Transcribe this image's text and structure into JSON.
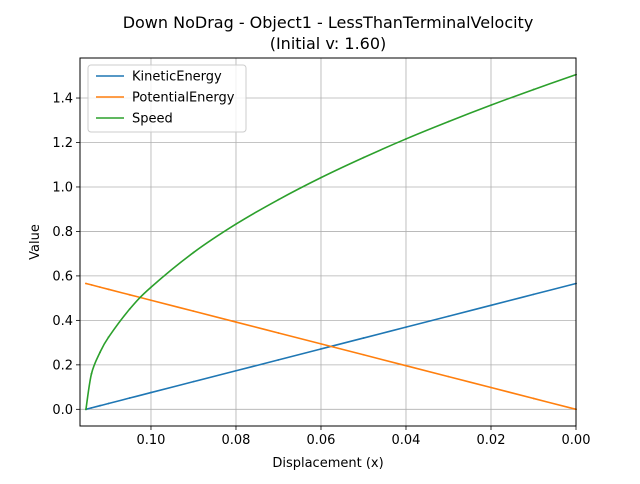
{
  "chart_data": {
    "type": "line",
    "title": "Down NoDrag - Object1 - LessThanTerminalVelocity",
    "subtitle": "(Initial v: 1.60)",
    "xlabel": "Displacement (x)",
    "ylabel": "Value",
    "xlim": [
      0.1167,
      0.0
    ],
    "ylim": [
      -0.075,
      1.58
    ],
    "x_inverted": true,
    "grid": true,
    "legend_position": "top-left",
    "x_ticks": [
      0.1,
      0.08,
      0.06,
      0.04,
      0.02,
      0.0
    ],
    "x_tick_labels": [
      "0.10",
      "0.08",
      "0.06",
      "0.04",
      "0.02",
      "0.00"
    ],
    "y_ticks": [
      0.0,
      0.2,
      0.4,
      0.6,
      0.8,
      1.0,
      1.2,
      1.4
    ],
    "y_tick_labels": [
      "0.0",
      "0.2",
      "0.4",
      "0.6",
      "0.8",
      "1.0",
      "1.2",
      "1.4"
    ],
    "x": [
      0.1153,
      0.114,
      0.112,
      0.11,
      0.105,
      0.1,
      0.09,
      0.08,
      0.07,
      0.06,
      0.05,
      0.04,
      0.03,
      0.02,
      0.01,
      0.0
    ],
    "series": [
      {
        "name": "KineticEnergy",
        "color": "#1f77b4",
        "values": [
          0.0,
          0.0064,
          0.0163,
          0.0262,
          0.0508,
          0.0753,
          0.1244,
          0.1734,
          0.2225,
          0.2716,
          0.3206,
          0.3697,
          0.4187,
          0.4678,
          0.5169,
          0.5659
        ]
      },
      {
        "name": "PotentialEnergy",
        "color": "#ff7f0e",
        "values": [
          0.5659,
          0.5595,
          0.5496,
          0.5397,
          0.5151,
          0.4906,
          0.4415,
          0.3925,
          0.3434,
          0.2943,
          0.2453,
          0.1962,
          0.1472,
          0.0981,
          0.049,
          0.0
        ]
      },
      {
        "name": "Speed",
        "color": "#2ca02c",
        "values": [
          0.0,
          0.16,
          0.256,
          0.324,
          0.451,
          0.549,
          0.705,
          0.833,
          0.943,
          1.042,
          1.132,
          1.216,
          1.294,
          1.368,
          1.438,
          1.505
        ]
      }
    ]
  }
}
